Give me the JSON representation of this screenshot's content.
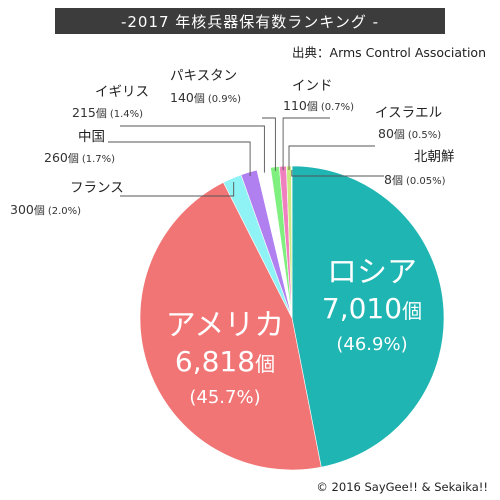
{
  "chart_data": {
    "type": "pie",
    "title": "-2017 年核兵器保有数ランキング -",
    "source": "出典：Arms Control Association",
    "copyright": "© 2016 SayGee!! & Sekaika!!",
    "count_unit": "個",
    "slices": [
      {
        "name": "ロシア",
        "value": 7010,
        "value_text": "7,010",
        "percent": "(46.9%)",
        "color": "#1eb5b3"
      },
      {
        "name": "アメリカ",
        "value": 6818,
        "value_text": "6,818",
        "percent": "(45.7%)",
        "color": "#f27575"
      },
      {
        "name": "フランス",
        "value": 300,
        "value_text": "300",
        "percent": "(2.0%)",
        "color": "#8ff2f5"
      },
      {
        "name": "中国",
        "value": 260,
        "value_text": "260",
        "percent": "(1.7%)",
        "color": "#b07ff0"
      },
      {
        "name": "イギリス",
        "value": 215,
        "value_text": "215",
        "percent": "(1.4%)",
        "color": "#ffffff"
      },
      {
        "name": "パキスタン",
        "value": 140,
        "value_text": "140",
        "percent": "(0.9%)",
        "color": "#7ff07f"
      },
      {
        "name": "インド",
        "value": 110,
        "value_text": "110",
        "percent": "(0.7%)",
        "color": "#f07fc0"
      },
      {
        "name": "イスラエル",
        "value": 80,
        "value_text": "80",
        "percent": "(0.5%)",
        "color": "#c8eb82"
      },
      {
        "name": "北朝鮮",
        "value": 8,
        "value_text": "8",
        "percent": "(0.05%)",
        "color": "#f5e08a"
      }
    ]
  }
}
